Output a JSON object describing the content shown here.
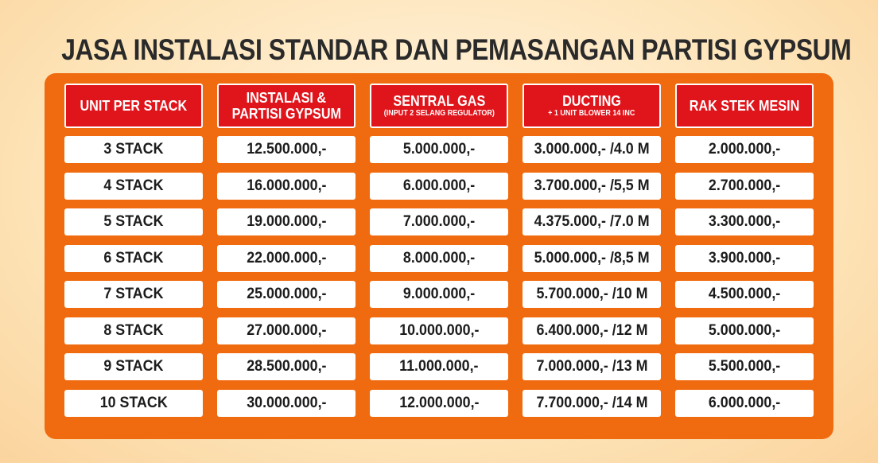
{
  "title": "JASA INSTALASI STANDAR DAN PEMASANGAN PARTISI GYPSUM",
  "headers": [
    {
      "line1": "UNIT PER STACK",
      "line2": "",
      "sub": ""
    },
    {
      "line1": "INSTALASI &",
      "line2": "PARTISI GYPSUM",
      "sub": ""
    },
    {
      "line1": "SENTRAL GAS",
      "line2": "",
      "sub": "(INPUT 2 SELANG REGULATOR)"
    },
    {
      "line1": "DUCTING",
      "line2": "",
      "sub": "+ 1 UNIT BLOWER 14 INC"
    },
    {
      "line1": "RAK STEK MESIN",
      "line2": "",
      "sub": ""
    }
  ],
  "rows": [
    [
      "3 STACK",
      "12.500.000,-",
      "5.000.000,-",
      "3.000.000,- /4.0 M",
      "2.000.000,-"
    ],
    [
      "4 STACK",
      "16.000.000,-",
      "6.000.000,-",
      "3.700.000,- /5,5 M",
      "2.700.000,-"
    ],
    [
      "5 STACK",
      "19.000.000,-",
      "7.000.000,-",
      "4.375.000,- /7.0 M",
      "3.300.000,-"
    ],
    [
      "6 STACK",
      "22.000.000,-",
      "8.000.000,-",
      "5.000.000,- /8,5 M",
      "3.900.000,-"
    ],
    [
      "7 STACK",
      "25.000.000,-",
      "9.000.000,-",
      "5.700.000,- /10 M",
      "4.500.000,-"
    ],
    [
      "8 STACK",
      "27.000.000,-",
      "10.000.000,-",
      "6.400.000,- /12 M",
      "5.000.000,-"
    ],
    [
      "9 STACK",
      "28.500.000,-",
      "11.000.000,-",
      "7.000.000,- /13 M",
      "5.500.000,-"
    ],
    [
      "10 STACK",
      "30.000.000,-",
      "12.000.000,-",
      "7.700.000,- /14 M",
      "6.000.000,-"
    ]
  ],
  "colors": {
    "background": "#fde3b6",
    "panel": "#f06b0f",
    "header_fill": "#e0141b",
    "cell_fill": "#ffffff",
    "text_dark": "#1c1c1c"
  }
}
